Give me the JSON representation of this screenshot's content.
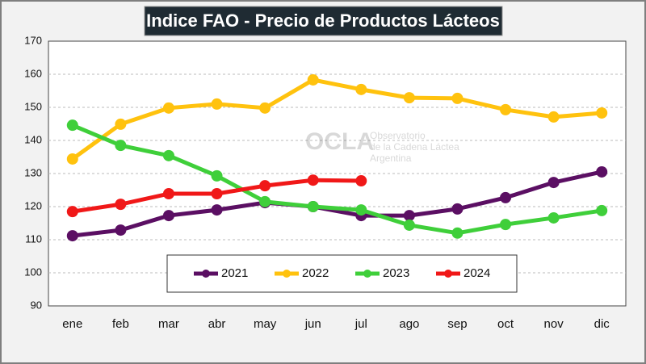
{
  "chart_data": {
    "type": "line",
    "title": "Indice FAO - Precio de Productos Lácteos",
    "watermark": {
      "logo": "OCLA",
      "line1": "Observatorio",
      "line2": "de la Cadena Láctea",
      "line3": "Argentina"
    },
    "categories": [
      "ene",
      "feb",
      "mar",
      "abr",
      "may",
      "jun",
      "jul",
      "ago",
      "sep",
      "oct",
      "nov",
      "dic"
    ],
    "series": [
      {
        "name": "2021",
        "color": "#5b0f63",
        "values": [
          111.2,
          112.9,
          117.3,
          119,
          121.2,
          120,
          117.3,
          117.3,
          119.3,
          122.7,
          127.3,
          130.5
        ]
      },
      {
        "name": "2022",
        "color": "#ffc20e",
        "values": [
          134.4,
          144.9,
          149.8,
          151,
          149.8,
          158.3,
          155.4,
          152.9,
          152.7,
          149.3,
          147.1,
          148.3
        ]
      },
      {
        "name": "2023",
        "color": "#3fcf3a",
        "values": [
          144.6,
          138.5,
          135.4,
          129.3,
          121.5,
          120,
          119,
          114.4,
          112,
          114.6,
          116.6,
          118.8
        ]
      },
      {
        "name": "2024",
        "color": "#f01818",
        "values": [
          118.5,
          120.7,
          123.9,
          123.9,
          126.3,
          128,
          127.8,
          null,
          null,
          null,
          null,
          null
        ]
      }
    ],
    "ylim": [
      90,
      170
    ],
    "yticks": [
      90,
      100,
      110,
      120,
      130,
      140,
      150,
      160,
      170
    ],
    "grid": true,
    "legend": "bottom"
  }
}
